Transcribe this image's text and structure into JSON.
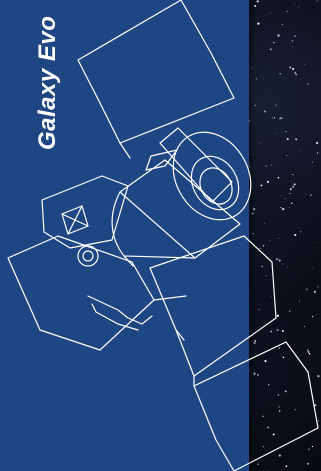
{
  "title_text": "Galaxy Evo",
  "colors": {
    "panel_blue": "#1d4682",
    "line_art": "#ffffff",
    "space": "#07090f"
  },
  "illustration": {
    "subject": "satellite-line-drawing",
    "icon_name": "spacecraft-icon"
  }
}
